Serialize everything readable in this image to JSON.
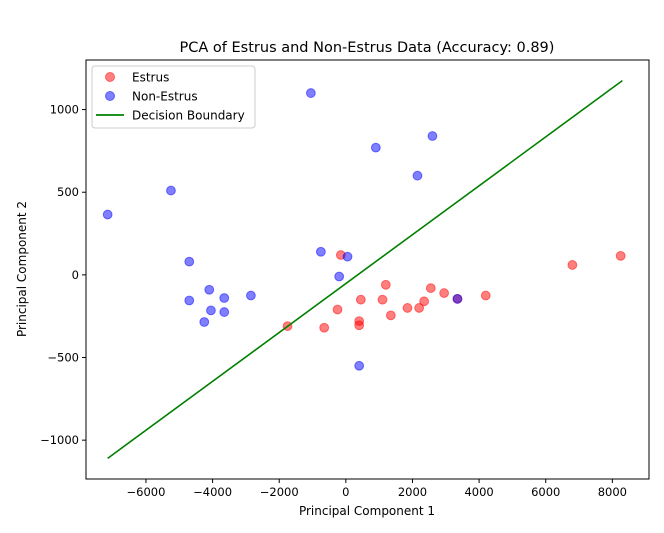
{
  "chart_data": {
    "type": "scatter",
    "title": "PCA of Estrus and Non-Estrus Data (Accuracy: 0.89)",
    "xlabel": "Principal Component 1",
    "ylabel": "Principal Component 2",
    "xlim": [
      -7800,
      9100
    ],
    "ylim": [
      -1235,
      1300
    ],
    "xticks": [
      -6000,
      -4000,
      -2000,
      0,
      2000,
      4000,
      6000,
      8000
    ],
    "yticks": [
      -1000,
      -500,
      0,
      500,
      1000
    ],
    "xtick_labels": [
      "−6000",
      "−4000",
      "−2000",
      "0",
      "2000",
      "4000",
      "6000",
      "8000"
    ],
    "ytick_labels": [
      "−1000",
      "−500",
      "0",
      "500",
      "1000"
    ],
    "grid": false,
    "legend_position": "top-left",
    "legend": [
      "Estrus",
      "Non-Estrus",
      "Decision Boundary"
    ],
    "series": [
      {
        "name": "Estrus",
        "color": "#ff0000",
        "kind": "scatter",
        "points": [
          [
            -1750,
            -310
          ],
          [
            -650,
            -320
          ],
          [
            -250,
            -210
          ],
          [
            -150,
            120
          ],
          [
            400,
            -280
          ],
          [
            400,
            -305
          ],
          [
            450,
            -150
          ],
          [
            1100,
            -150
          ],
          [
            1200,
            -60
          ],
          [
            1350,
            -245
          ],
          [
            1850,
            -200
          ],
          [
            2200,
            -200
          ],
          [
            2350,
            -160
          ],
          [
            2550,
            -80
          ],
          [
            2950,
            -110
          ],
          [
            3350,
            -145
          ],
          [
            4200,
            -125
          ],
          [
            6800,
            60
          ],
          [
            8250,
            115
          ]
        ]
      },
      {
        "name": "Non-Estrus",
        "color": "#0000ff",
        "kind": "scatter",
        "points": [
          [
            -7150,
            365
          ],
          [
            -5250,
            510
          ],
          [
            -1050,
            1100
          ],
          [
            900,
            770
          ],
          [
            2600,
            840
          ],
          [
            2150,
            600
          ],
          [
            -4700,
            80
          ],
          [
            -750,
            140
          ],
          [
            50,
            110
          ],
          [
            -200,
            -10
          ],
          [
            -4100,
            -90
          ],
          [
            -3650,
            -140
          ],
          [
            -4700,
            -155
          ],
          [
            -2850,
            -125
          ],
          [
            -4050,
            -215
          ],
          [
            -3650,
            -225
          ],
          [
            -4250,
            -285
          ],
          [
            400,
            -550
          ],
          [
            3350,
            -145
          ]
        ]
      },
      {
        "name": "Decision Boundary",
        "color": "#008000",
        "kind": "line",
        "points": [
          [
            -7150,
            -1110
          ],
          [
            8300,
            1175
          ]
        ]
      }
    ]
  }
}
